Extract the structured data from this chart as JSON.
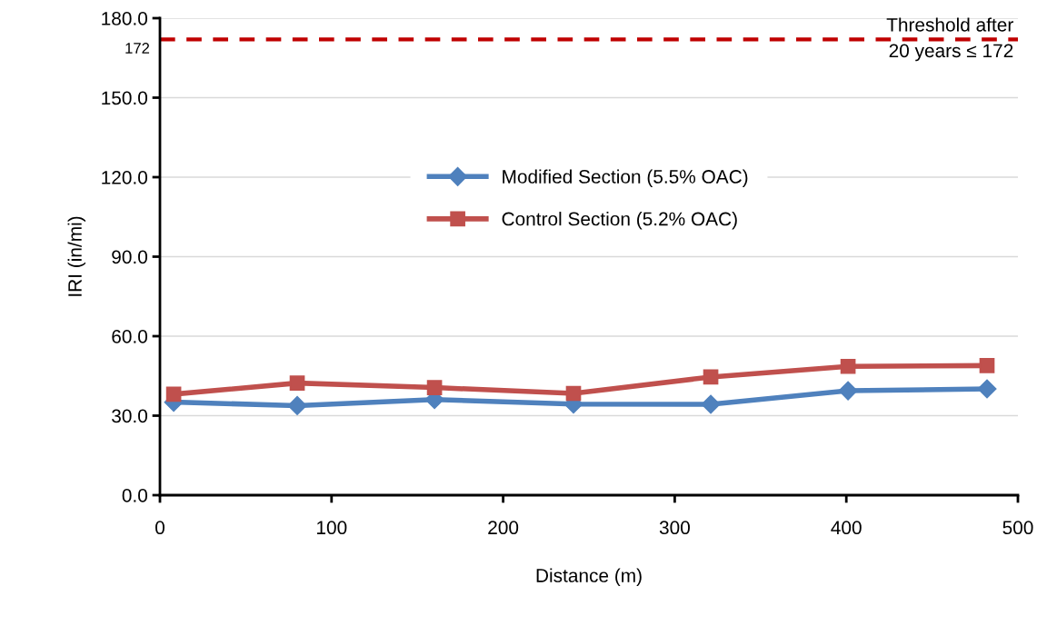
{
  "chart_data": {
    "type": "line",
    "xlabel": "Distance (m)",
    "ylabel": "IRI (in/mi)",
    "xlim": [
      0,
      500
    ],
    "xticks": [
      0,
      100,
      200,
      300,
      400,
      500
    ],
    "ylim": [
      0,
      180
    ],
    "yticks": [
      {
        "value": 0,
        "label": "0.0"
      },
      {
        "value": 30,
        "label": "30.0"
      },
      {
        "value": 60,
        "label": "60.0"
      },
      {
        "value": 90,
        "label": "90.0"
      },
      {
        "value": 120,
        "label": "120.0"
      },
      {
        "value": 150,
        "label": "150.0"
      },
      {
        "value": 180,
        "label": "180.0"
      }
    ],
    "grid": "y",
    "legend": "center",
    "line_style": "solid",
    "x": [
      8,
      80,
      160,
      241,
      321,
      401,
      482
    ],
    "series": [
      {
        "name": "Modified Section (5.5% OAC)",
        "color": "#4f81bd",
        "marker": "diamond",
        "values": [
          35.1,
          33.8,
          36.1,
          34.4,
          34.3,
          39.4,
          40.1
        ]
      },
      {
        "name": "Control Section (5.2% OAC)",
        "color": "#c0504d",
        "marker": "square",
        "values": [
          38.1,
          42.3,
          40.6,
          38.4,
          44.6,
          48.6,
          48.9
        ]
      }
    ],
    "ref_lines": [
      {
        "axis": "y",
        "value": 172,
        "label": "Threshold after\n20 years ≤ 172",
        "color": "#c00000",
        "line_style": "dashed"
      }
    ],
    "annotations": [
      {
        "text": "172",
        "x": 0,
        "y": 172
      }
    ]
  }
}
